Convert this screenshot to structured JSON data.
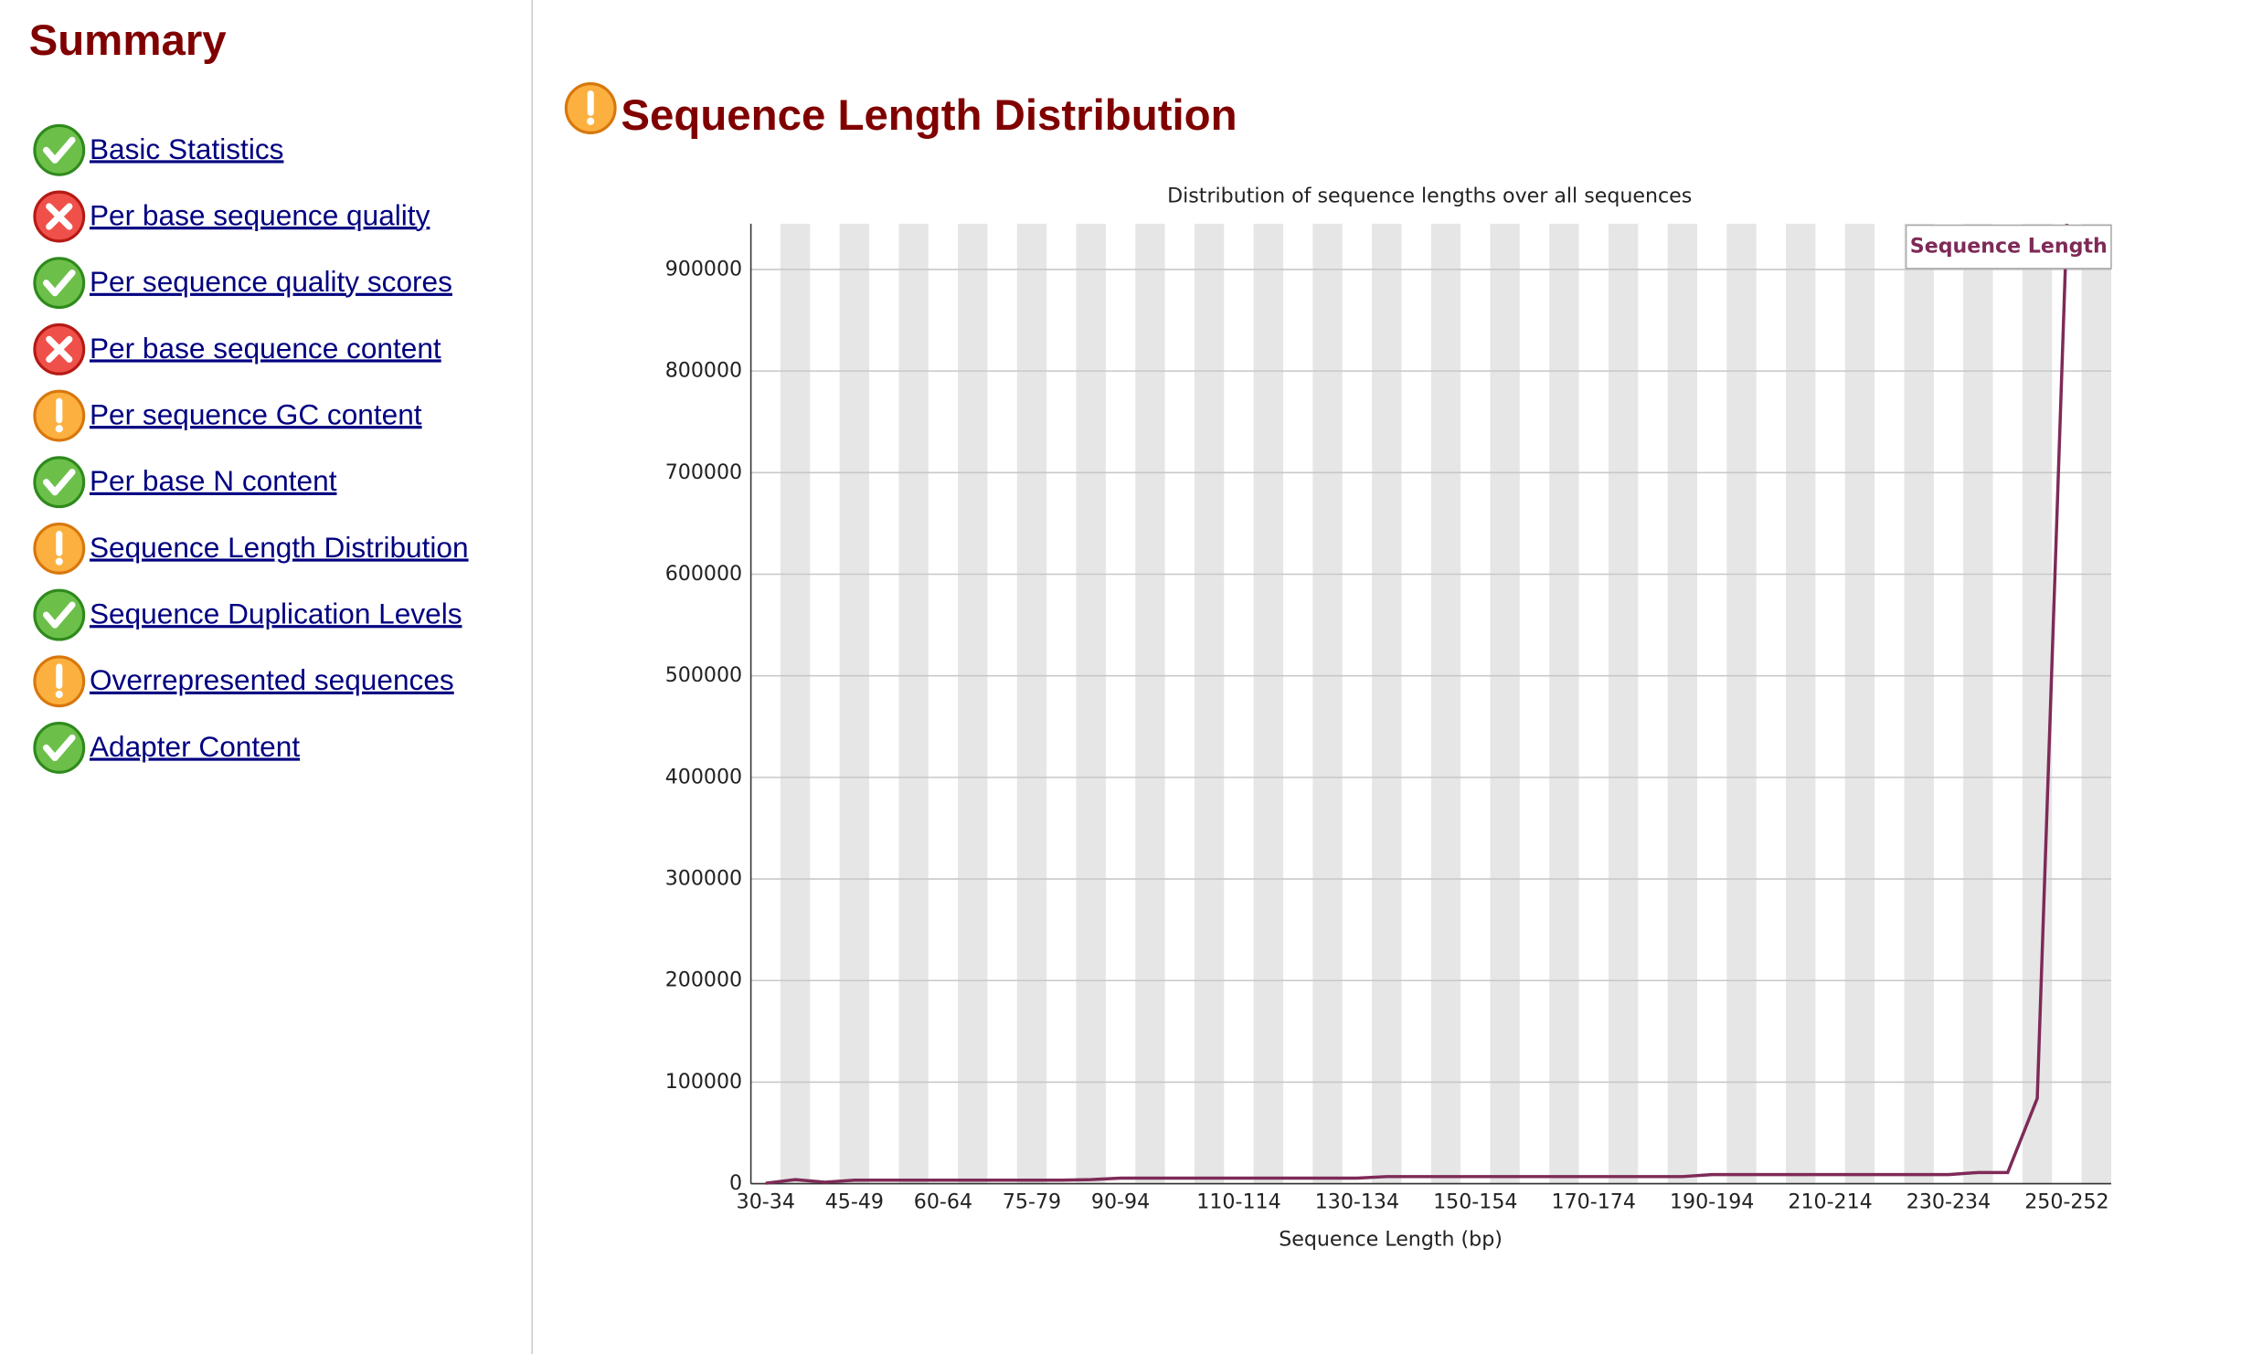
{
  "sidebar": {
    "title": "Summary",
    "items": [
      {
        "label": "Basic Statistics",
        "icon": "pass"
      },
      {
        "label": "Per base sequence quality",
        "icon": "fail"
      },
      {
        "label": "Per sequence quality scores",
        "icon": "pass"
      },
      {
        "label": "Per base sequence content",
        "icon": "fail"
      },
      {
        "label": "Per sequence GC content",
        "icon": "warn"
      },
      {
        "label": "Per base N content",
        "icon": "pass"
      },
      {
        "label": "Sequence Length Distribution",
        "icon": "warn"
      },
      {
        "label": "Sequence Duplication Levels",
        "icon": "pass"
      },
      {
        "label": "Overrepresented sequences",
        "icon": "warn"
      },
      {
        "label": "Adapter Content",
        "icon": "pass"
      }
    ]
  },
  "section": {
    "title": "Sequence Length Distribution",
    "icon": "warn"
  },
  "chart_data": {
    "type": "line",
    "title": "Distribution of sequence lengths over all sequences",
    "x_label": "Sequence Length (bp)",
    "categories": [
      "30-34",
      null,
      null,
      "45-49",
      null,
      null,
      "60-64",
      null,
      null,
      "75-79",
      null,
      null,
      "90-94",
      null,
      null,
      null,
      "110-114",
      null,
      null,
      null,
      "130-134",
      null,
      null,
      null,
      "150-154",
      null,
      null,
      null,
      "170-174",
      null,
      null,
      null,
      "190-194",
      null,
      null,
      null,
      "210-214",
      null,
      null,
      null,
      "230-234",
      null,
      null,
      null,
      "250-252"
    ],
    "series": [
      {
        "name": "Sequence Length",
        "color": "#7e2a57",
        "values": [
          500,
          4000,
          1500,
          3500,
          3500,
          3500,
          3500,
          3500,
          3500,
          3500,
          3500,
          4000,
          5500,
          5500,
          5500,
          5500,
          5500,
          5500,
          5500,
          5500,
          5500,
          7000,
          7000,
          7000,
          7000,
          7000,
          7000,
          7000,
          7000,
          7000,
          7000,
          7000,
          9000,
          9000,
          9000,
          9000,
          9000,
          9000,
          9000,
          9000,
          9000,
          11000,
          11000,
          84000,
          945000
        ]
      }
    ],
    "ylim": [
      0,
      945000
    ],
    "yticks": [
      0,
      100000,
      200000,
      300000,
      400000,
      500000,
      600000,
      700000,
      800000,
      900000
    ],
    "grid": true,
    "legend": "top-right"
  }
}
